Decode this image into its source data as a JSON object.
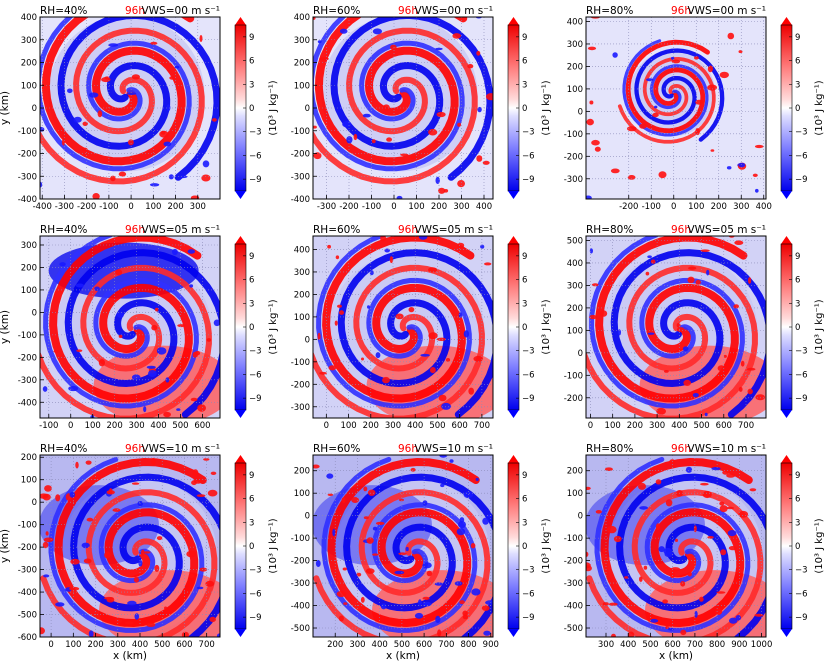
{
  "figure": {
    "xlabel": "x (km)",
    "ylabel": "y (km)",
    "colorbar_label": "(10³ J kg⁻¹)",
    "time_label": "96h",
    "time_color": "#ff0000",
    "positive_color": "#ff0000",
    "negative_color": "#0000ff",
    "neutral_color": "#ffffff"
  },
  "chart_data": [
    {
      "type": "heatmap",
      "panel": "1-1",
      "title_left": "RH=40%",
      "time": "96h",
      "title_right": "VWS=00 m s⁻¹",
      "xticks": [
        -400,
        -300,
        -200,
        -100,
        0,
        100,
        200,
        300
      ],
      "yticks": [
        -400,
        -300,
        -200,
        -100,
        0,
        100,
        200,
        300,
        400
      ],
      "xlim": [
        -410,
        400
      ],
      "ylim": [
        -400,
        400
      ],
      "colorbar_ticks": [
        9,
        6,
        3,
        0,
        -3,
        -6,
        -9
      ],
      "xlabel": "",
      "ylabel": "y (km)",
      "colorbar_label": "(10³ J kg⁻¹)"
    },
    {
      "type": "heatmap",
      "panel": "1-2",
      "title_left": "RH=60%",
      "time": "96h",
      "title_right": "VWS=00 m s⁻¹",
      "xticks": [
        -300,
        -200,
        -100,
        0,
        100,
        200,
        300,
        400
      ],
      "yticks": [
        -400,
        -300,
        -200,
        -100,
        0,
        100,
        200,
        300,
        400
      ],
      "xlim": [
        -360,
        440
      ],
      "ylim": [
        -400,
        400
      ],
      "colorbar_ticks": [
        9,
        6,
        3,
        0,
        -3,
        -6,
        -9
      ],
      "xlabel": "",
      "ylabel": "",
      "colorbar_label": "(10³ J kg⁻¹)"
    },
    {
      "type": "heatmap",
      "panel": "1-3",
      "title_left": "RH=80%",
      "time": "96h",
      "title_right": "VWS=00 m s⁻¹",
      "xticks": [
        -200,
        -100,
        0,
        100,
        200,
        300,
        400
      ],
      "yticks": [
        -300,
        -200,
        -100,
        0,
        100,
        200,
        300,
        400
      ],
      "xlim": [
        -390,
        410
      ],
      "ylim": [
        -390,
        420
      ],
      "colorbar_ticks": [
        9,
        6,
        3,
        0,
        -3,
        -6,
        -9
      ],
      "xlabel": "",
      "ylabel": "",
      "colorbar_label": "(10³ J kg⁻¹)"
    },
    {
      "type": "heatmap",
      "panel": "2-1",
      "title_left": "RH=40%",
      "time": "96h",
      "title_right": "VWS=05 m s⁻¹",
      "xticks": [
        -100,
        0,
        100,
        200,
        300,
        400,
        500,
        600
      ],
      "yticks": [
        -400,
        -300,
        -200,
        -100,
        0,
        100,
        200,
        300
      ],
      "xlim": [
        -140,
        680
      ],
      "ylim": [
        -470,
        340
      ],
      "colorbar_ticks": [
        9,
        6,
        3,
        0,
        -3,
        -6,
        -9
      ],
      "xlabel": "",
      "ylabel": "y (km)",
      "colorbar_label": "(10³ J kg⁻¹)"
    },
    {
      "type": "heatmap",
      "panel": "2-2",
      "title_left": "RH=60%",
      "time": "96h",
      "title_right": "VWS=05 m s⁻¹",
      "xticks": [
        0,
        100,
        200,
        300,
        400,
        500,
        600,
        700
      ],
      "yticks": [
        -300,
        -200,
        -100,
        0,
        100,
        200,
        300,
        400
      ],
      "xlim": [
        -60,
        750
      ],
      "ylim": [
        -350,
        460
      ],
      "colorbar_ticks": [
        9,
        6,
        3,
        0,
        -3,
        -6,
        -9
      ],
      "xlabel": "",
      "ylabel": "",
      "colorbar_label": "(10³ J kg⁻¹)"
    },
    {
      "type": "heatmap",
      "panel": "2-3",
      "title_left": "RH=80%",
      "time": "96h",
      "title_right": "VWS=05 m s⁻¹",
      "xticks": [
        0,
        100,
        200,
        300,
        400,
        500,
        600,
        700
      ],
      "yticks": [
        -200,
        -100,
        0,
        100,
        200,
        300,
        400,
        500
      ],
      "xlim": [
        -20,
        790
      ],
      "ylim": [
        -290,
        520
      ],
      "colorbar_ticks": [
        9,
        6,
        3,
        0,
        -3,
        -6,
        -9
      ],
      "xlabel": "",
      "ylabel": "",
      "colorbar_label": "(10³ J kg⁻¹)"
    },
    {
      "type": "heatmap",
      "panel": "3-1",
      "title_left": "RH=40%",
      "time": "96h",
      "title_right": "VWS=10 m s⁻¹",
      "xticks": [
        0,
        100,
        200,
        300,
        400,
        500,
        600,
        700
      ],
      "yticks": [
        -600,
        -500,
        -400,
        -300,
        -200,
        -100,
        0,
        100,
        200
      ],
      "xlim": [
        -50,
        760
      ],
      "ylim": [
        -600,
        210
      ],
      "colorbar_ticks": [
        9,
        6,
        3,
        0,
        -3,
        -6,
        -9
      ],
      "xlabel": "x (km)",
      "ylabel": "y (km)",
      "colorbar_label": "(10³ J kg⁻¹)"
    },
    {
      "type": "heatmap",
      "panel": "3-2",
      "title_left": "RH=60%",
      "time": "96h",
      "title_right": "VWS=10 m s⁻¹",
      "xticks": [
        200,
        300,
        400,
        500,
        600,
        700,
        800,
        900
      ],
      "yticks": [
        -500,
        -400,
        -300,
        -200,
        -100,
        0,
        100,
        200
      ],
      "xlim": [
        100,
        910
      ],
      "ylim": [
        -540,
        270
      ],
      "colorbar_ticks": [
        9,
        6,
        3,
        0,
        -3,
        -6,
        -9
      ],
      "xlabel": "x (km)",
      "ylabel": "",
      "colorbar_label": "(10³ J kg⁻¹)"
    },
    {
      "type": "heatmap",
      "panel": "3-3",
      "title_left": "RH=80%",
      "time": "96h",
      "title_right": "VWS=10 m s⁻¹",
      "xticks": [
        300,
        400,
        500,
        600,
        700,
        800,
        900,
        1000
      ],
      "yticks": [
        -500,
        -400,
        -300,
        -200,
        -100,
        0,
        100,
        200
      ],
      "xlim": [
        210,
        1020
      ],
      "ylim": [
        -540,
        270
      ],
      "colorbar_ticks": [
        9,
        6,
        3,
        0,
        -3,
        -6,
        -9
      ],
      "xlabel": "x (km)",
      "ylabel": "",
      "colorbar_label": "(10³ J kg⁻¹)"
    }
  ]
}
